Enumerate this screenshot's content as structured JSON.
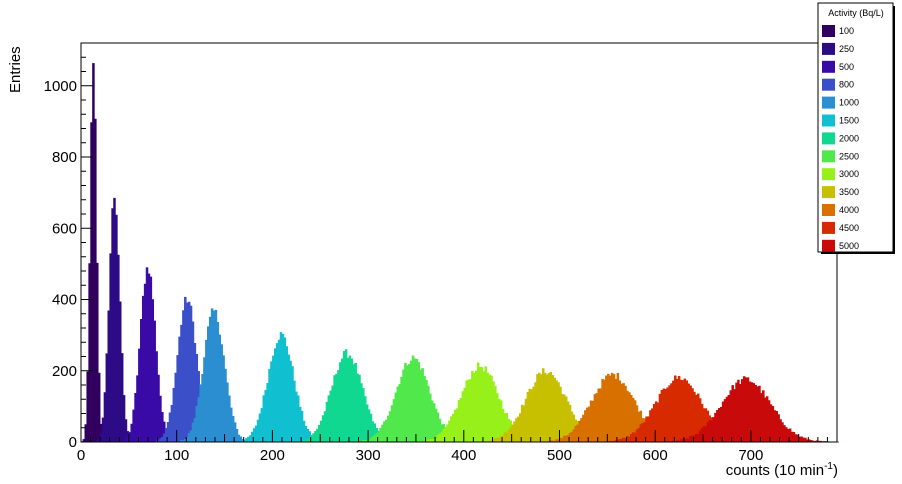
{
  "chart_data": {
    "type": "bar",
    "title": "",
    "xlabel": "counts (10 min",
    "xlabel_sup": "-1",
    "xlabel_close": ")",
    "ylabel": "Entries",
    "xlim": [
      0,
      790
    ],
    "ylim": [
      0,
      1120
    ],
    "grid": false,
    "legend": {
      "title": "Activity (Bq/L)",
      "placement": "top-right"
    },
    "x_ticks": [
      0,
      100,
      200,
      300,
      400,
      500,
      600,
      700
    ],
    "y_ticks": [
      0,
      200,
      400,
      600,
      800,
      1000
    ],
    "series": [
      {
        "name": "100",
        "color": "#31005f",
        "peak_x": 13,
        "peak_y": 1080,
        "sigma": 3.2
      },
      {
        "name": "250",
        "color": "#2d0a86",
        "peak_x": 35,
        "peak_y": 690,
        "sigma": 5.5
      },
      {
        "name": "500",
        "color": "#3a0aa6",
        "peak_x": 70,
        "peak_y": 490,
        "sigma": 8
      },
      {
        "name": "800",
        "color": "#3a4fc8",
        "peak_x": 111,
        "peak_y": 400,
        "sigma": 10
      },
      {
        "name": "1000",
        "color": "#2a8ed0",
        "peak_x": 139,
        "peak_y": 365,
        "sigma": 11
      },
      {
        "name": "1500",
        "color": "#10c0d0",
        "peak_x": 209,
        "peak_y": 300,
        "sigma": 13.5
      },
      {
        "name": "2000",
        "color": "#10d890",
        "peak_x": 278,
        "peak_y": 248,
        "sigma": 16
      },
      {
        "name": "2500",
        "color": "#50e84a",
        "peak_x": 347,
        "peak_y": 235,
        "sigma": 17.5
      },
      {
        "name": "3000",
        "color": "#98f01a",
        "peak_x": 417,
        "peak_y": 212,
        "sigma": 19.5
      },
      {
        "name": "3500",
        "color": "#c6c000",
        "peak_x": 486,
        "peak_y": 198,
        "sigma": 21
      },
      {
        "name": "4000",
        "color": "#d87000",
        "peak_x": 556,
        "peak_y": 188,
        "sigma": 22.5
      },
      {
        "name": "4500",
        "color": "#d82a00",
        "peak_x": 625,
        "peak_y": 180,
        "sigma": 24
      },
      {
        "name": "5000",
        "color": "#c80a0a",
        "peak_x": 695,
        "peak_y": 175,
        "sigma": 25.5
      }
    ]
  }
}
